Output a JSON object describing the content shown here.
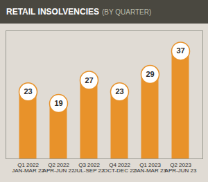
{
  "chart_data": {
    "type": "bar",
    "title": "RETAIL INSOLVENCIES",
    "subtitle": "(BY QUARTER)",
    "categories": [
      "Q1 2022\nJAN-MAR 22",
      "Q2 2022\nAPR-JUN 22",
      "Q3 2022\nJUL-SEP 22",
      "Q4 2022\nOCT-DEC 22",
      "Q1 2023\nJAN-MAR 23",
      "Q2 2023\nAPR-JUN 23"
    ],
    "values": [
      23,
      19,
      27,
      23,
      29,
      37
    ],
    "color": "#E8922A",
    "ylim": [
      0,
      44
    ],
    "yticks": [],
    "grid": false,
    "data_labels": true,
    "tick_labels": "x"
  }
}
